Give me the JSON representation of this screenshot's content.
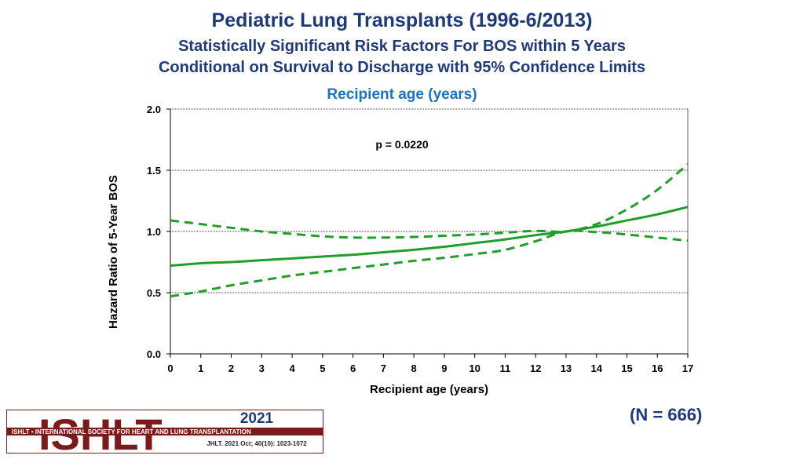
{
  "header": {
    "title": "Pediatric Lung Transplants (1996-6/2013)",
    "subtitle1": "Statistically Significant Risk Factors For BOS within 5 Years",
    "subtitle2": "Conditional on Survival to Discharge with 95% Confidence Limits"
  },
  "footer": {
    "n_label": "(N = 666)",
    "logo_text": "ISHLT",
    "logo_banner": "ISHLT • INTERNATIONAL SOCIETY FOR HEART AND LUNG TRANSPLANTATION",
    "year": "2021",
    "citation": "JHLT. 2021 Oct; 40(10): 1023-1072"
  },
  "colors": {
    "line": "#1f9e2a",
    "title": "#1f3a7a",
    "chart_title": "#1a73c7",
    "logo_red": "#7a1a1a"
  },
  "chart_data": {
    "type": "line",
    "title": "Recipient age (years)",
    "xlabel": "Recipient age (years)",
    "ylabel": "Hazard Ratio of 5-Year BOS",
    "xlim": [
      0,
      17
    ],
    "ylim": [
      0,
      2.0
    ],
    "xticks": [
      "0",
      "1",
      "2",
      "3",
      "4",
      "5",
      "6",
      "7",
      "8",
      "9",
      "10",
      "11",
      "12",
      "13",
      "14",
      "15",
      "16",
      "17"
    ],
    "yticks": [
      "0.0",
      "0.5",
      "1.0",
      "1.5",
      "2.0"
    ],
    "grid": true,
    "annotation": "p = 0.0220",
    "x": [
      0,
      1,
      2,
      3,
      4,
      5,
      6,
      7,
      8,
      9,
      10,
      11,
      12,
      13,
      14,
      15,
      16,
      17
    ],
    "series": [
      {
        "name": "Hazard ratio",
        "style": "solid",
        "values": [
          0.72,
          0.74,
          0.75,
          0.765,
          0.78,
          0.795,
          0.81,
          0.83,
          0.85,
          0.875,
          0.905,
          0.935,
          0.97,
          1.0,
          1.04,
          1.09,
          1.14,
          1.2
        ]
      },
      {
        "name": "Upper 95% CL",
        "style": "dashed",
        "values": [
          1.09,
          1.06,
          1.03,
          1.0,
          0.98,
          0.96,
          0.95,
          0.95,
          0.955,
          0.965,
          0.975,
          0.99,
          1.005,
          1.0,
          1.06,
          1.18,
          1.34,
          1.55
        ]
      },
      {
        "name": "Lower 95% CL",
        "style": "dashed",
        "values": [
          0.47,
          0.51,
          0.56,
          0.6,
          0.64,
          0.67,
          0.7,
          0.73,
          0.76,
          0.785,
          0.815,
          0.85,
          0.92,
          1.0,
          0.995,
          0.975,
          0.95,
          0.925
        ]
      }
    ]
  }
}
